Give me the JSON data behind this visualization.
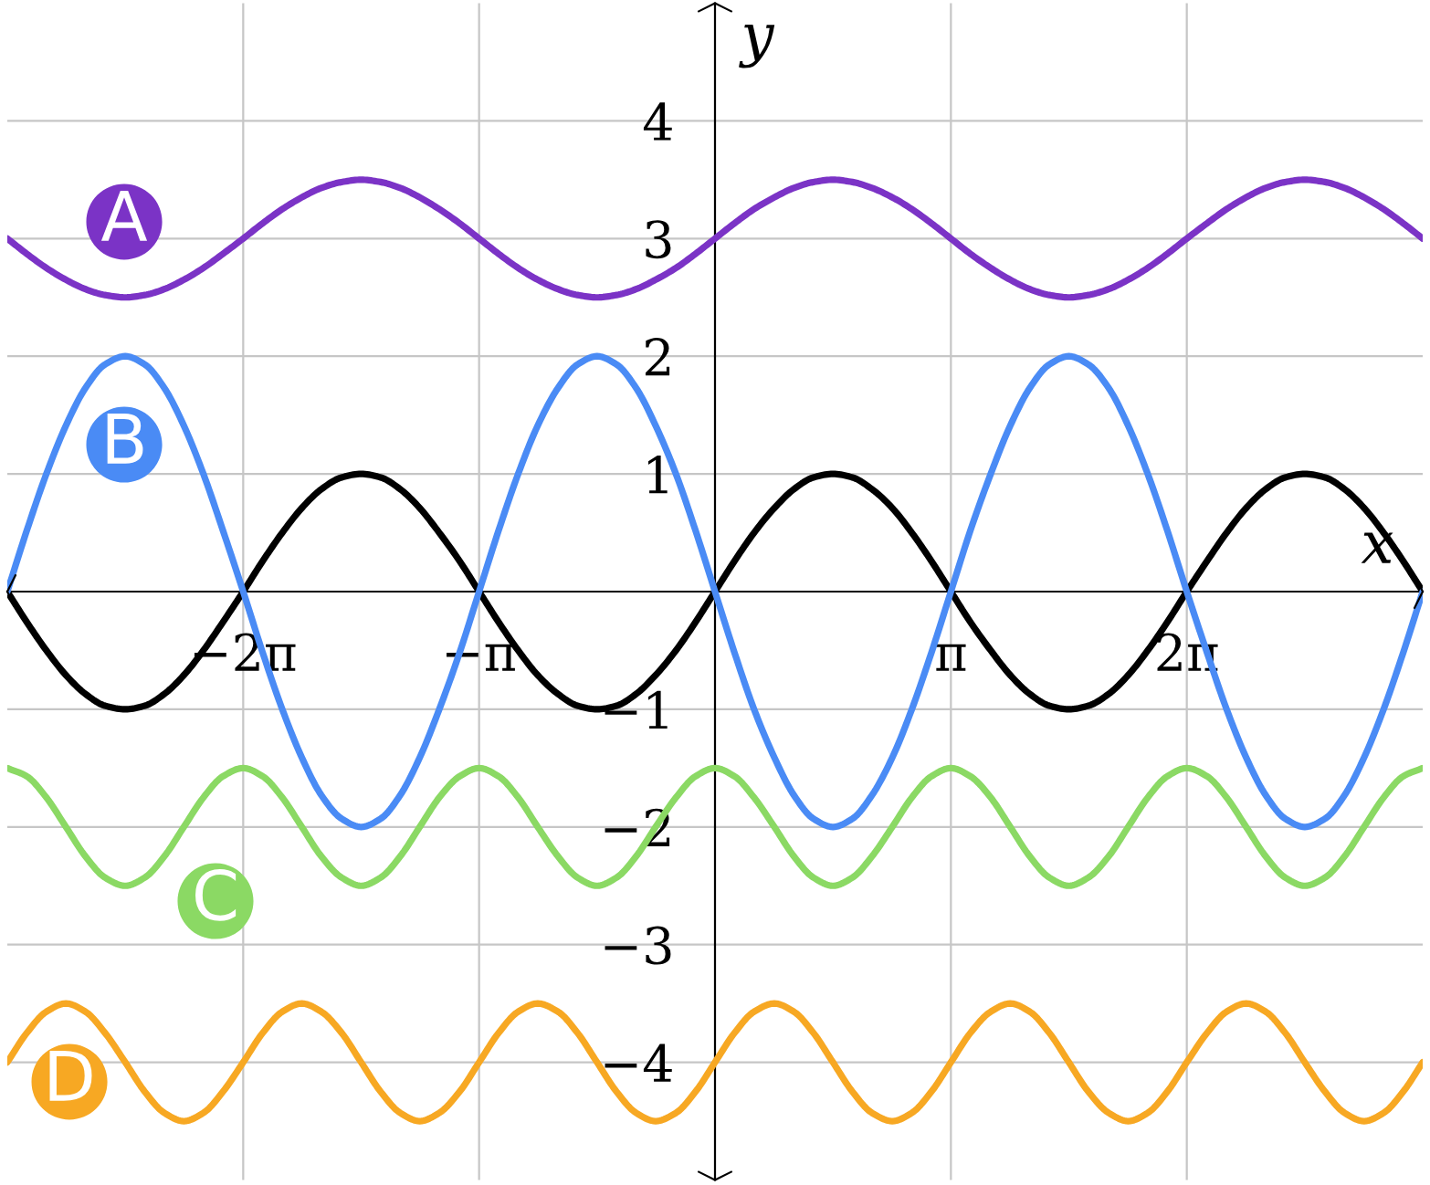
{
  "chart_data": {
    "type": "line",
    "xlabel": "x",
    "ylabel": "y",
    "x": [
      -9.42,
      -9.16,
      -8.9,
      -8.64,
      -8.38,
      -8.12,
      -7.85,
      -7.59,
      -7.33,
      -7.07,
      -6.81,
      -6.55,
      -6.28,
      -6.02,
      -5.76,
      -5.5,
      -5.24,
      -4.97,
      -4.71,
      -4.45,
      -4.19,
      -3.93,
      -3.67,
      -3.4,
      -3.14,
      -2.88,
      -2.62,
      -2.36,
      -2.09,
      -1.83,
      -1.57,
      -1.31,
      -1.05,
      -0.79,
      -0.52,
      -0.26,
      0,
      0.26,
      0.52,
      0.79,
      1.05,
      1.31,
      1.57,
      1.83,
      2.09,
      2.36,
      2.62,
      2.88,
      3.14,
      3.4,
      3.67,
      3.93,
      4.19,
      4.45,
      4.71,
      4.97,
      5.24,
      5.5,
      5.76,
      6.02,
      6.28,
      6.55,
      6.81,
      7.07,
      7.33,
      7.59,
      7.85,
      8.12,
      8.38,
      8.64,
      8.9,
      9.16,
      9.42
    ],
    "xlim": [
      -9.42,
      9.42
    ],
    "xticks": [
      {
        "value": -6.28,
        "label": "−2π"
      },
      {
        "value": -3.14,
        "label": "−π"
      },
      {
        "value": 3.14,
        "label": "π"
      },
      {
        "value": 6.28,
        "label": "2π"
      }
    ],
    "ylim": [
      -5,
      5
    ],
    "yticks": [
      {
        "value": -4,
        "label": "−4"
      },
      {
        "value": -3,
        "label": "−3"
      },
      {
        "value": -2,
        "label": "−2"
      },
      {
        "value": -1,
        "label": "−1"
      },
      1,
      2,
      3,
      4
    ],
    "grid": true,
    "line_style": "solid",
    "series": [
      {
        "color": "#000000",
        "values": [
          0,
          -0.26,
          -0.5,
          -0.71,
          -0.87,
          -0.97,
          -1,
          -0.97,
          -0.87,
          -0.71,
          -0.5,
          -0.26,
          0,
          0.26,
          0.5,
          0.71,
          0.87,
          0.97,
          1,
          0.97,
          0.87,
          0.71,
          0.5,
          0.26,
          0,
          -0.26,
          -0.5,
          -0.71,
          -0.87,
          -0.97,
          -1,
          -0.97,
          -0.87,
          -0.71,
          -0.5,
          -0.26,
          0,
          0.26,
          0.5,
          0.71,
          0.87,
          0.97,
          1,
          0.97,
          0.87,
          0.71,
          0.5,
          0.26,
          0,
          -0.26,
          -0.5,
          -0.71,
          -0.87,
          -0.97,
          -1,
          -0.97,
          -0.87,
          -0.71,
          -0.5,
          -0.26,
          0,
          0.26,
          0.5,
          0.71,
          0.87,
          0.97,
          1,
          0.97,
          0.87,
          0.71,
          0.5,
          0.26,
          0
        ]
      },
      {
        "name": "A",
        "color": "#7b33c6",
        "values": [
          3,
          2.87,
          2.75,
          2.65,
          2.57,
          2.52,
          2.5,
          2.52,
          2.57,
          2.65,
          2.75,
          2.87,
          3,
          3.13,
          3.25,
          3.35,
          3.43,
          3.48,
          3.5,
          3.48,
          3.43,
          3.35,
          3.25,
          3.13,
          3,
          2.87,
          2.75,
          2.65,
          2.57,
          2.52,
          2.5,
          2.52,
          2.57,
          2.65,
          2.75,
          2.87,
          3,
          3.13,
          3.25,
          3.35,
          3.43,
          3.48,
          3.5,
          3.48,
          3.43,
          3.35,
          3.25,
          3.13,
          3,
          2.87,
          2.75,
          2.65,
          2.57,
          2.52,
          2.5,
          2.52,
          2.57,
          2.65,
          2.75,
          2.87,
          3,
          3.13,
          3.25,
          3.35,
          3.43,
          3.48,
          3.5,
          3.48,
          3.43,
          3.35,
          3.25,
          3.13,
          3
        ]
      },
      {
        "name": "B",
        "color": "#4a8bf5",
        "values": [
          0,
          0.52,
          1,
          1.41,
          1.73,
          1.93,
          2,
          1.93,
          1.73,
          1.41,
          1,
          0.52,
          0,
          -0.52,
          -1,
          -1.41,
          -1.73,
          -1.93,
          -2,
          -1.93,
          -1.73,
          -1.41,
          -1,
          -0.52,
          0,
          0.52,
          1,
          1.41,
          1.73,
          1.93,
          2,
          1.93,
          1.73,
          1.41,
          1,
          0.52,
          0,
          -0.52,
          -1,
          -1.41,
          -1.73,
          -1.93,
          -2,
          -1.93,
          -1.73,
          -1.41,
          -1,
          -0.52,
          0,
          0.52,
          1,
          1.41,
          1.73,
          1.93,
          2,
          1.93,
          1.73,
          1.41,
          1,
          0.52,
          0,
          -0.52,
          -1,
          -1.41,
          -1.73,
          -1.93,
          -2,
          -1.93,
          -1.73,
          -1.41,
          -1,
          -0.52,
          0
        ]
      },
      {
        "name": "C",
        "color": "#8bd964",
        "values": [
          -1.5,
          -1.57,
          -1.75,
          -2,
          -2.25,
          -2.43,
          -2.5,
          -2.43,
          -2.25,
          -2,
          -1.75,
          -1.57,
          -1.5,
          -1.57,
          -1.75,
          -2,
          -2.25,
          -2.43,
          -2.5,
          -2.43,
          -2.25,
          -2,
          -1.75,
          -1.57,
          -1.5,
          -1.57,
          -1.75,
          -2,
          -2.25,
          -2.43,
          -2.5,
          -2.43,
          -2.25,
          -2,
          -1.75,
          -1.57,
          -1.5,
          -1.57,
          -1.75,
          -2,
          -2.25,
          -2.43,
          -2.5,
          -2.43,
          -2.25,
          -2,
          -1.75,
          -1.57,
          -1.5,
          -1.57,
          -1.75,
          -2,
          -2.25,
          -2.43,
          -2.5,
          -2.43,
          -2.25,
          -2,
          -1.75,
          -1.57,
          -1.5,
          -1.57,
          -1.75,
          -2,
          -2.25,
          -2.43,
          -2.5,
          -2.43,
          -2.25,
          -2,
          -1.75,
          -1.57,
          -1.5
        ]
      },
      {
        "name": "D",
        "color": "#f7a823",
        "values": [
          -4,
          -3.75,
          -3.57,
          -3.5,
          -3.57,
          -3.75,
          -4,
          -4.25,
          -4.43,
          -4.5,
          -4.43,
          -4.25,
          -4,
          -3.75,
          -3.57,
          -3.5,
          -3.57,
          -3.75,
          -4,
          -4.25,
          -4.43,
          -4.5,
          -4.43,
          -4.25,
          -4,
          -3.75,
          -3.57,
          -3.5,
          -3.57,
          -3.75,
          -4,
          -4.25,
          -4.43,
          -4.5,
          -4.43,
          -4.25,
          -4,
          -3.75,
          -3.57,
          -3.5,
          -3.57,
          -3.75,
          -4,
          -4.25,
          -4.43,
          -4.5,
          -4.43,
          -4.25,
          -4,
          -3.75,
          -3.57,
          -3.5,
          -3.57,
          -3.75,
          -4,
          -4.25,
          -4.43,
          -4.5,
          -4.43,
          -4.25,
          -4,
          -3.75,
          -3.57,
          -3.5,
          -3.57,
          -3.75,
          -4,
          -4.25,
          -4.43,
          -4.5,
          -4.43,
          -4.25,
          -4
        ]
      }
    ]
  }
}
